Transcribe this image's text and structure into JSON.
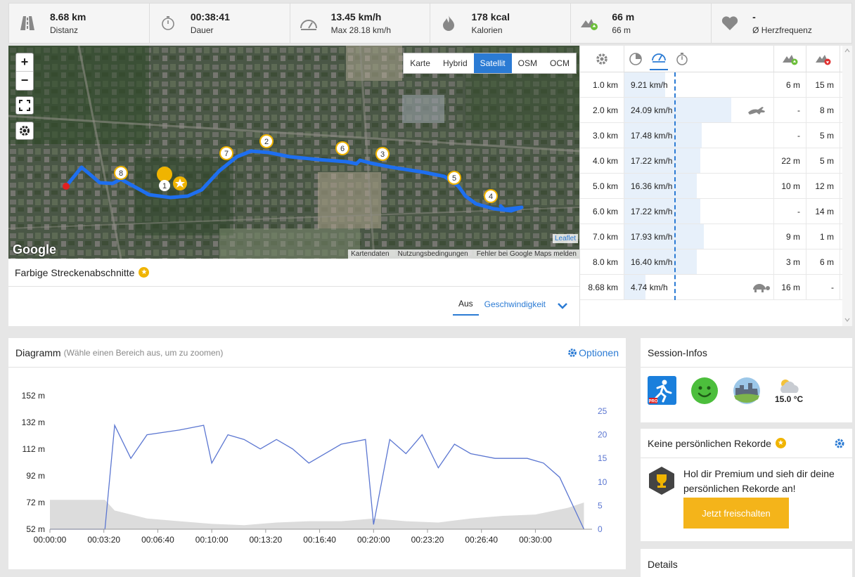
{
  "stats": [
    {
      "value": "8.68 km",
      "label": "Distanz",
      "icon": "road-icon"
    },
    {
      "value": "00:38:41",
      "label": "Dauer",
      "icon": "stopwatch-icon"
    },
    {
      "value": "13.45 km/h",
      "label": "Max 28.18 km/h",
      "icon": "speedometer-icon"
    },
    {
      "value": "178 kcal",
      "label": "Kalorien",
      "icon": "flame-icon"
    },
    {
      "value": "66 m",
      "label": "66 m",
      "icon": "elevation-gain-icon"
    },
    {
      "value": "-",
      "label": "Ø Herzfrequenz",
      "icon": "heart-icon"
    }
  ],
  "map": {
    "zoom_in": "+",
    "zoom_out": "−",
    "layers": [
      "Karte",
      "Hybrid",
      "Satellit",
      "OSM",
      "OCM"
    ],
    "active_layer": "Satellit",
    "google_logo": "Google",
    "leaflet": "Leaflet",
    "attribution": [
      "Kartendaten",
      "Nutzungsbedingungen",
      "Fehler bei Google Maps melden"
    ],
    "markers": [
      "1",
      "2",
      "3",
      "4",
      "5",
      "6",
      "7",
      "8"
    ]
  },
  "segments": {
    "title": "Farbige Streckenabschnitte",
    "tab_off": "Aus",
    "tab_speed": "Geschwindigkeit"
  },
  "splits": [
    {
      "dist": "1.0 km",
      "speed": "9.21 km/h",
      "speed_val": 9.21,
      "up": "6 m",
      "down": "15 m",
      "badge": ""
    },
    {
      "dist": "2.0 km",
      "speed": "24.09 km/h",
      "speed_val": 24.09,
      "up": "-",
      "down": "8 m",
      "badge": "hare-icon"
    },
    {
      "dist": "3.0 km",
      "speed": "17.48 km/h",
      "speed_val": 17.48,
      "up": "-",
      "down": "5 m",
      "badge": ""
    },
    {
      "dist": "4.0 km",
      "speed": "17.22 km/h",
      "speed_val": 17.22,
      "up": "22 m",
      "down": "5 m",
      "badge": ""
    },
    {
      "dist": "5.0 km",
      "speed": "16.36 km/h",
      "speed_val": 16.36,
      "up": "10 m",
      "down": "12 m",
      "badge": ""
    },
    {
      "dist": "6.0 km",
      "speed": "17.22 km/h",
      "speed_val": 17.22,
      "up": "-",
      "down": "14 m",
      "badge": ""
    },
    {
      "dist": "7.0 km",
      "speed": "17.93 km/h",
      "speed_val": 17.93,
      "up": "9 m",
      "down": "1 m",
      "badge": ""
    },
    {
      "dist": "8.0 km",
      "speed": "16.40 km/h",
      "speed_val": 16.4,
      "up": "3 m",
      "down": "6 m",
      "badge": ""
    },
    {
      "dist": "8.68 km",
      "speed": "4.74 km/h",
      "speed_val": 4.74,
      "up": "16 m",
      "down": "-",
      "badge": "tortoise-icon"
    }
  ],
  "diagram": {
    "title": "Diagramm",
    "hint": "(Wähle einen Bereich aus, um zu zoomen)",
    "options": "Optionen"
  },
  "chart_data": {
    "type": "area",
    "x_ticks": [
      "00:00:00",
      "00:03:20",
      "00:06:40",
      "00:10:00",
      "00:13:20",
      "00:16:40",
      "00:20:00",
      "00:23:20",
      "00:26:40",
      "00:30:00"
    ],
    "y_left_ticks": [
      "52 m",
      "72 m",
      "92 m",
      "112 m",
      "132 m",
      "152 m"
    ],
    "y_right_ticks": [
      "0",
      "5",
      "10",
      "15",
      "20",
      "25"
    ],
    "series": [
      {
        "values_minutes": [
          0,
          3.4,
          4,
          5,
          6,
          8,
          9.5,
          10,
          11,
          12,
          13,
          14,
          15,
          16,
          18,
          19.5,
          20,
          21,
          22,
          23,
          24,
          25,
          26,
          27.5,
          28.5,
          29.5,
          30.5,
          31.5,
          33
        ],
        "values": [
          0,
          0,
          22,
          15,
          20,
          21,
          22,
          14,
          20,
          19,
          17,
          19,
          17,
          14,
          18,
          19,
          1,
          19,
          16,
          20,
          13,
          18,
          16,
          15,
          15,
          15,
          14,
          11,
          0
        ],
        "color": "#5b76d1"
      },
      {
        "values_minutes": [
          0,
          3.4,
          4,
          6,
          8,
          10,
          12,
          14,
          16,
          18,
          20,
          22,
          24,
          26,
          28,
          30,
          32,
          33
        ],
        "values": [
          74,
          74,
          66,
          60,
          58,
          56,
          55,
          57,
          58,
          58,
          60,
          58,
          57,
          60,
          62,
          63,
          68,
          72
        ],
        "color": "#dcdcdc"
      }
    ]
  },
  "session": {
    "title": "Session-Infos",
    "temp": "15.0 °C"
  },
  "records": {
    "title": "Keine persönlichen Rekorde",
    "text": "Hol dir Premium und sieh dir deine persönlichen Rekorde an!",
    "button": "Jetzt freischalten"
  },
  "details": {
    "title": "Details"
  }
}
